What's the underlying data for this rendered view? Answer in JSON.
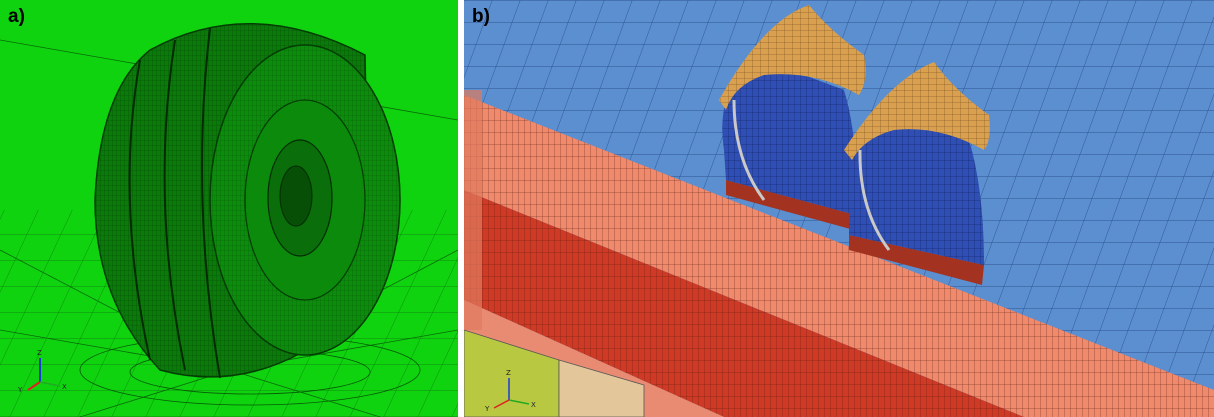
{
  "panels": [
    {
      "label": "a)",
      "description_icon": "tire-on-ground-mesh"
    },
    {
      "label": "b)",
      "description_icon": "dual-tires-on-soil-mesh"
    }
  ],
  "axes_triad": {
    "x": "X",
    "y": "Y",
    "z": "Z"
  },
  "colors": {
    "ground_green": "#0fd30f",
    "tire_green": "#0a7a0a",
    "soil_blue": "#5b8fd0",
    "soil_salmon": "#ef8a6c",
    "soil_red": "#cf3a26",
    "tire_blue": "#2f4fb5",
    "tread_orange": "#d9a050",
    "base_yellow": "#b8c840"
  }
}
